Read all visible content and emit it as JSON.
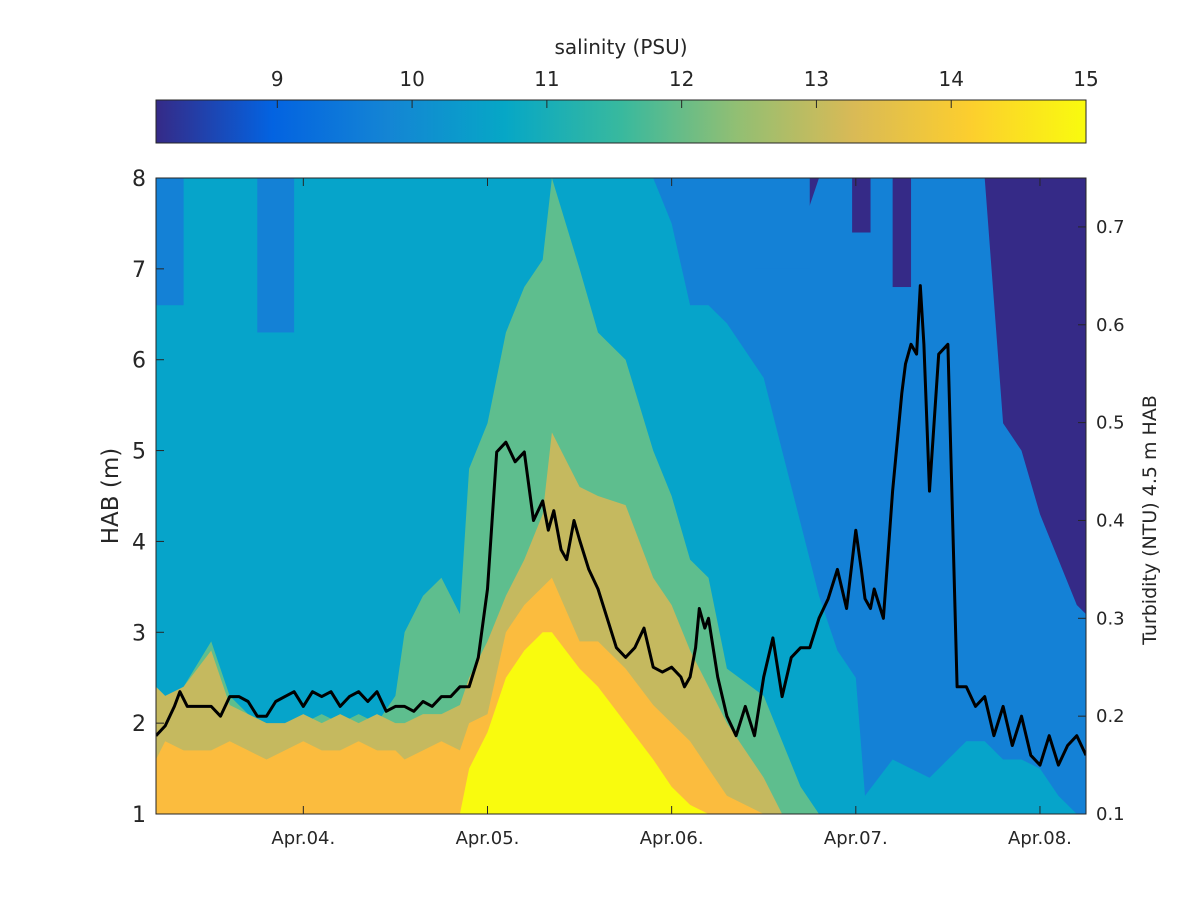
{
  "chart_data": {
    "type": "heatmap",
    "title": "",
    "colorbar": {
      "label": "salinity (PSU)",
      "range": [
        8.1,
        15
      ],
      "ticks": [
        9,
        10,
        11,
        12,
        13,
        14,
        15
      ],
      "tick_labels": [
        "9",
        "10",
        "11",
        "12",
        "13",
        "14",
        "15"
      ],
      "location": "top",
      "colormap": "parula"
    },
    "x_axis": {
      "type": "time",
      "range": [
        "Apr.03 ~05:00",
        "Apr.08 ~06:00"
      ],
      "tick_labels": [
        "Apr.04.",
        "Apr.05.",
        "Apr.06.",
        "Apr.07.",
        "Apr.08."
      ],
      "tick_days": [
        4,
        5,
        6,
        7,
        8
      ]
    },
    "y_axis_left": {
      "label": "HAB (m)",
      "range": [
        1,
        8
      ],
      "ticks": [
        1,
        2,
        3,
        4,
        5,
        6,
        7,
        8
      ],
      "tick_labels": [
        "1",
        "2",
        "3",
        "4",
        "5",
        "6",
        "7",
        "8"
      ]
    },
    "y_axis_right": {
      "label": "Turbidity (NTU) 4.5 m HAB",
      "range": [
        0.1,
        0.75
      ],
      "ticks": [
        0.1,
        0.2,
        0.3,
        0.4,
        0.5,
        0.6,
        0.7
      ],
      "tick_labels": [
        "0.1",
        "0.2",
        "0.3",
        "0.4",
        "0.5",
        "0.6",
        "0.7"
      ]
    },
    "contour_levels": [
      8.5,
      9.5,
      10.5,
      11.5,
      12.5,
      13.5,
      14.5
    ],
    "level_colors": [
      "#352a87",
      "#0f5cdd",
      "#1481d6",
      "#06a4ca",
      "#5ebe8e",
      "#c5b95f",
      "#fbbc3e",
      "#f9fb0e"
    ],
    "salinity_columns": {
      "day": [
        3.2,
        3.25,
        3.35,
        3.5,
        3.6,
        3.7,
        3.8,
        3.9,
        4.0,
        4.1,
        4.2,
        4.3,
        4.4,
        4.5,
        4.55,
        4.65,
        4.75,
        4.85,
        4.9,
        5.0,
        5.1,
        5.2,
        5.3,
        5.35,
        5.5,
        5.6,
        5.75,
        5.9,
        6.0,
        6.1,
        6.2,
        6.3,
        6.5,
        6.6,
        6.7,
        6.8,
        6.9,
        7.0,
        7.05,
        7.2,
        7.3,
        7.4,
        7.5,
        7.6,
        7.7,
        7.8,
        7.9,
        8.0,
        8.1,
        8.2,
        8.25
      ],
      "t1": [
        1.6,
        1.8,
        1.7,
        1.7,
        1.8,
        1.7,
        1.6,
        1.7,
        1.8,
        1.7,
        1.7,
        1.8,
        1.7,
        1.7,
        1.6,
        1.7,
        1.8,
        1.7,
        2.0,
        2.1,
        3.0,
        3.3,
        3.5,
        3.6,
        2.9,
        2.9,
        2.6,
        2.2,
        2.0,
        1.8,
        1.5,
        1.2,
        1.0,
        1.0,
        1.0,
        1.0,
        1.0,
        1.0,
        1.0,
        1.0,
        1.0,
        1.0,
        1.0,
        1.0,
        1.0,
        1.0,
        1.0,
        1.0,
        1.0,
        1.0,
        1.0
      ],
      "t2": [
        2.4,
        2.3,
        2.4,
        2.8,
        2.2,
        2.1,
        2.0,
        2.0,
        2.1,
        2.0,
        2.1,
        2.0,
        2.1,
        2.0,
        2.0,
        2.1,
        2.1,
        2.2,
        2.5,
        2.9,
        3.4,
        3.8,
        4.3,
        5.2,
        4.6,
        4.5,
        4.4,
        3.6,
        3.3,
        2.8,
        2.4,
        2.0,
        1.4,
        1.0,
        1.0,
        1.0,
        1.0,
        1.0,
        1.0,
        1.0,
        1.0,
        1.0,
        1.0,
        1.0,
        1.0,
        1.0,
        1.0,
        1.0,
        1.0,
        1.0,
        1.0
      ],
      "t3": [
        2.3,
        2.0,
        2.4,
        2.9,
        2.3,
        2.1,
        2.0,
        1.9,
        2.0,
        2.1,
        2.0,
        2.1,
        2.0,
        2.3,
        3.0,
        3.4,
        3.6,
        3.2,
        4.8,
        5.3,
        6.3,
        6.8,
        7.1,
        8.0,
        7.0,
        6.3,
        6.0,
        5.0,
        4.5,
        3.8,
        3.6,
        2.6,
        2.3,
        1.8,
        1.3,
        1.0,
        1.0,
        1.0,
        1.0,
        1.0,
        1.0,
        1.0,
        1.0,
        1.0,
        1.0,
        1.0,
        1.0,
        1.0,
        1.0,
        1.0,
        1.0
      ],
      "t4": [
        8.0,
        8.0,
        8.0,
        8.0,
        8.0,
        8.0,
        8.0,
        8.0,
        8.0,
        8.0,
        8.0,
        8.0,
        8.0,
        8.0,
        8.0,
        8.0,
        8.0,
        8.0,
        8.0,
        8.0,
        8.0,
        8.0,
        8.0,
        8.0,
        8.0,
        8.0,
        8.0,
        8.0,
        7.5,
        6.6,
        6.6,
        6.4,
        5.8,
        5.0,
        4.2,
        3.4,
        2.8,
        2.5,
        1.2,
        1.6,
        1.5,
        1.4,
        1.6,
        1.8,
        1.8,
        1.6,
        1.6,
        1.5,
        1.2,
        1.0,
        1.0
      ],
      "t5": [
        8.0,
        8.0,
        8.0,
        8.0,
        8.0,
        8.0,
        8.0,
        8.0,
        8.0,
        8.0,
        8.0,
        8.0,
        8.0,
        8.0,
        8.0,
        8.0,
        8.0,
        8.0,
        8.0,
        8.0,
        8.0,
        8.0,
        8.0,
        8.0,
        8.0,
        8.0,
        8.0,
        8.0,
        8.0,
        8.0,
        8.0,
        8.0,
        8.0,
        7.5,
        7.4,
        8.0,
        8.0,
        8.0,
        8.0,
        8.0,
        8.0,
        8.0,
        8.0,
        8.0,
        8.0,
        5.3,
        5.0,
        4.3,
        3.8,
        3.3,
        3.2
      ],
      "t6": [
        8.0,
        8.0,
        8.0,
        8.0,
        8.0,
        8.0,
        8.0,
        8.0,
        8.0,
        8.0,
        8.0,
        8.0,
        8.0,
        8.0,
        8.0,
        8.0,
        8.0,
        8.0,
        8.0,
        8.0,
        8.0,
        8.0,
        8.0,
        8.0,
        8.0,
        8.0,
        8.0,
        8.0,
        8.0,
        8.0,
        8.0,
        8.0,
        8.0,
        8.0,
        8.0,
        8.0,
        8.0,
        8.0,
        8.0,
        8.0,
        8.0,
        8.0,
        8.0,
        8.0,
        8.0,
        8.0,
        8.0,
        8.0,
        8.0,
        8.0,
        8.0
      ],
      "t7": [
        1.0,
        1.0,
        1.0,
        1.0,
        1.0,
        1.0,
        1.0,
        1.0,
        1.0,
        1.0,
        1.0,
        1.0,
        1.0,
        1.0,
        1.0,
        1.0,
        1.0,
        1.0,
        1.5,
        1.9,
        2.5,
        2.8,
        3.0,
        3.0,
        2.6,
        2.4,
        2.0,
        1.6,
        1.3,
        1.1,
        1.0,
        1.0,
        1.0,
        1.0,
        1.0,
        1.0,
        1.0,
        1.0,
        1.0,
        1.0,
        1.0,
        1.0,
        1.0,
        1.0,
        1.0,
        1.0,
        1.0,
        1.0,
        1.0,
        1.0,
        1.0
      ]
    },
    "salinity_patches": [
      {
        "level": 7,
        "day_start": 3.2,
        "day_end": 3.5,
        "hab_top": 1.25
      },
      {
        "level": 8,
        "day_start": 5.0,
        "day_end": 5.25,
        "hab_top": 1.6
      },
      {
        "level": 8,
        "day_start": 5.3,
        "day_end": 5.5,
        "hab_top": 1.35
      },
      {
        "level": 3,
        "day_start": 3.2,
        "day_end": 3.35,
        "hab_top": 8.0,
        "hab_bottom": 6.6
      },
      {
        "level": 3,
        "day_start": 3.75,
        "day_end": 3.95,
        "hab_top": 8.0,
        "hab_bottom": 6.3
      },
      {
        "level": 3,
        "day_start": 6.2,
        "day_end": 6.45,
        "hab_top": 8.0,
        "hab_bottom": 7.4
      },
      {
        "level": 3,
        "day_start": 6.45,
        "day_end": 6.75,
        "hab_top": 8.0,
        "hab_bottom": 7.0
      },
      {
        "level": 1,
        "day_start": 6.98,
        "day_end": 7.08,
        "hab_top": 8.0,
        "hab_bottom": 7.4
      },
      {
        "level": 1,
        "day_start": 7.2,
        "day_end": 7.3,
        "hab_top": 8.0,
        "hab_bottom": 6.8
      }
    ],
    "series": [
      {
        "axis": "right",
        "color": "#000000",
        "day": [
          3.2,
          3.25,
          3.3,
          3.33,
          3.37,
          3.4,
          3.45,
          3.5,
          3.55,
          3.6,
          3.65,
          3.7,
          3.75,
          3.8,
          3.85,
          3.9,
          3.95,
          4.0,
          4.05,
          4.1,
          4.15,
          4.2,
          4.25,
          4.3,
          4.35,
          4.4,
          4.45,
          4.5,
          4.55,
          4.6,
          4.65,
          4.7,
          4.75,
          4.8,
          4.85,
          4.9,
          4.95,
          5.0,
          5.05,
          5.1,
          5.15,
          5.2,
          5.25,
          5.3,
          5.33,
          5.36,
          5.4,
          5.43,
          5.47,
          5.5,
          5.55,
          5.6,
          5.65,
          5.7,
          5.75,
          5.8,
          5.85,
          5.9,
          5.95,
          6.0,
          6.05,
          6.07,
          6.1,
          6.13,
          6.15,
          6.18,
          6.2,
          6.25,
          6.3,
          6.35,
          6.4,
          6.45,
          6.5,
          6.55,
          6.6,
          6.65,
          6.7,
          6.75,
          6.8,
          6.85,
          6.9,
          6.95,
          7.0,
          7.03,
          7.05,
          7.08,
          7.1,
          7.15,
          7.2,
          7.25,
          7.27,
          7.3,
          7.33,
          7.35,
          7.37,
          7.4,
          7.45,
          7.5,
          7.55,
          7.6,
          7.65,
          7.7,
          7.75,
          7.8,
          7.85,
          7.9,
          7.95,
          8.0,
          8.05,
          8.1,
          8.15,
          8.2,
          8.25
        ],
        "values": [
          0.18,
          0.19,
          0.21,
          0.225,
          0.21,
          0.21,
          0.21,
          0.21,
          0.2,
          0.22,
          0.22,
          0.215,
          0.2,
          0.2,
          0.215,
          0.22,
          0.225,
          0.21,
          0.225,
          0.22,
          0.225,
          0.21,
          0.22,
          0.225,
          0.215,
          0.225,
          0.205,
          0.21,
          0.21,
          0.205,
          0.215,
          0.21,
          0.22,
          0.22,
          0.23,
          0.23,
          0.26,
          0.33,
          0.47,
          0.48,
          0.46,
          0.47,
          0.4,
          0.42,
          0.39,
          0.41,
          0.37,
          0.36,
          0.4,
          0.38,
          0.35,
          0.33,
          0.3,
          0.27,
          0.26,
          0.27,
          0.29,
          0.25,
          0.245,
          0.25,
          0.24,
          0.23,
          0.24,
          0.27,
          0.31,
          0.29,
          0.3,
          0.24,
          0.2,
          0.18,
          0.21,
          0.18,
          0.24,
          0.28,
          0.22,
          0.26,
          0.27,
          0.27,
          0.3,
          0.32,
          0.35,
          0.31,
          0.39,
          0.35,
          0.32,
          0.31,
          0.33,
          0.3,
          0.43,
          0.53,
          0.56,
          0.58,
          0.57,
          0.64,
          0.58,
          0.43,
          0.57,
          0.58,
          0.23,
          0.23,
          0.21,
          0.22,
          0.18,
          0.21,
          0.17,
          0.2,
          0.16,
          0.15,
          0.18,
          0.15,
          0.17,
          0.18,
          0.16
        ]
      }
    ]
  }
}
